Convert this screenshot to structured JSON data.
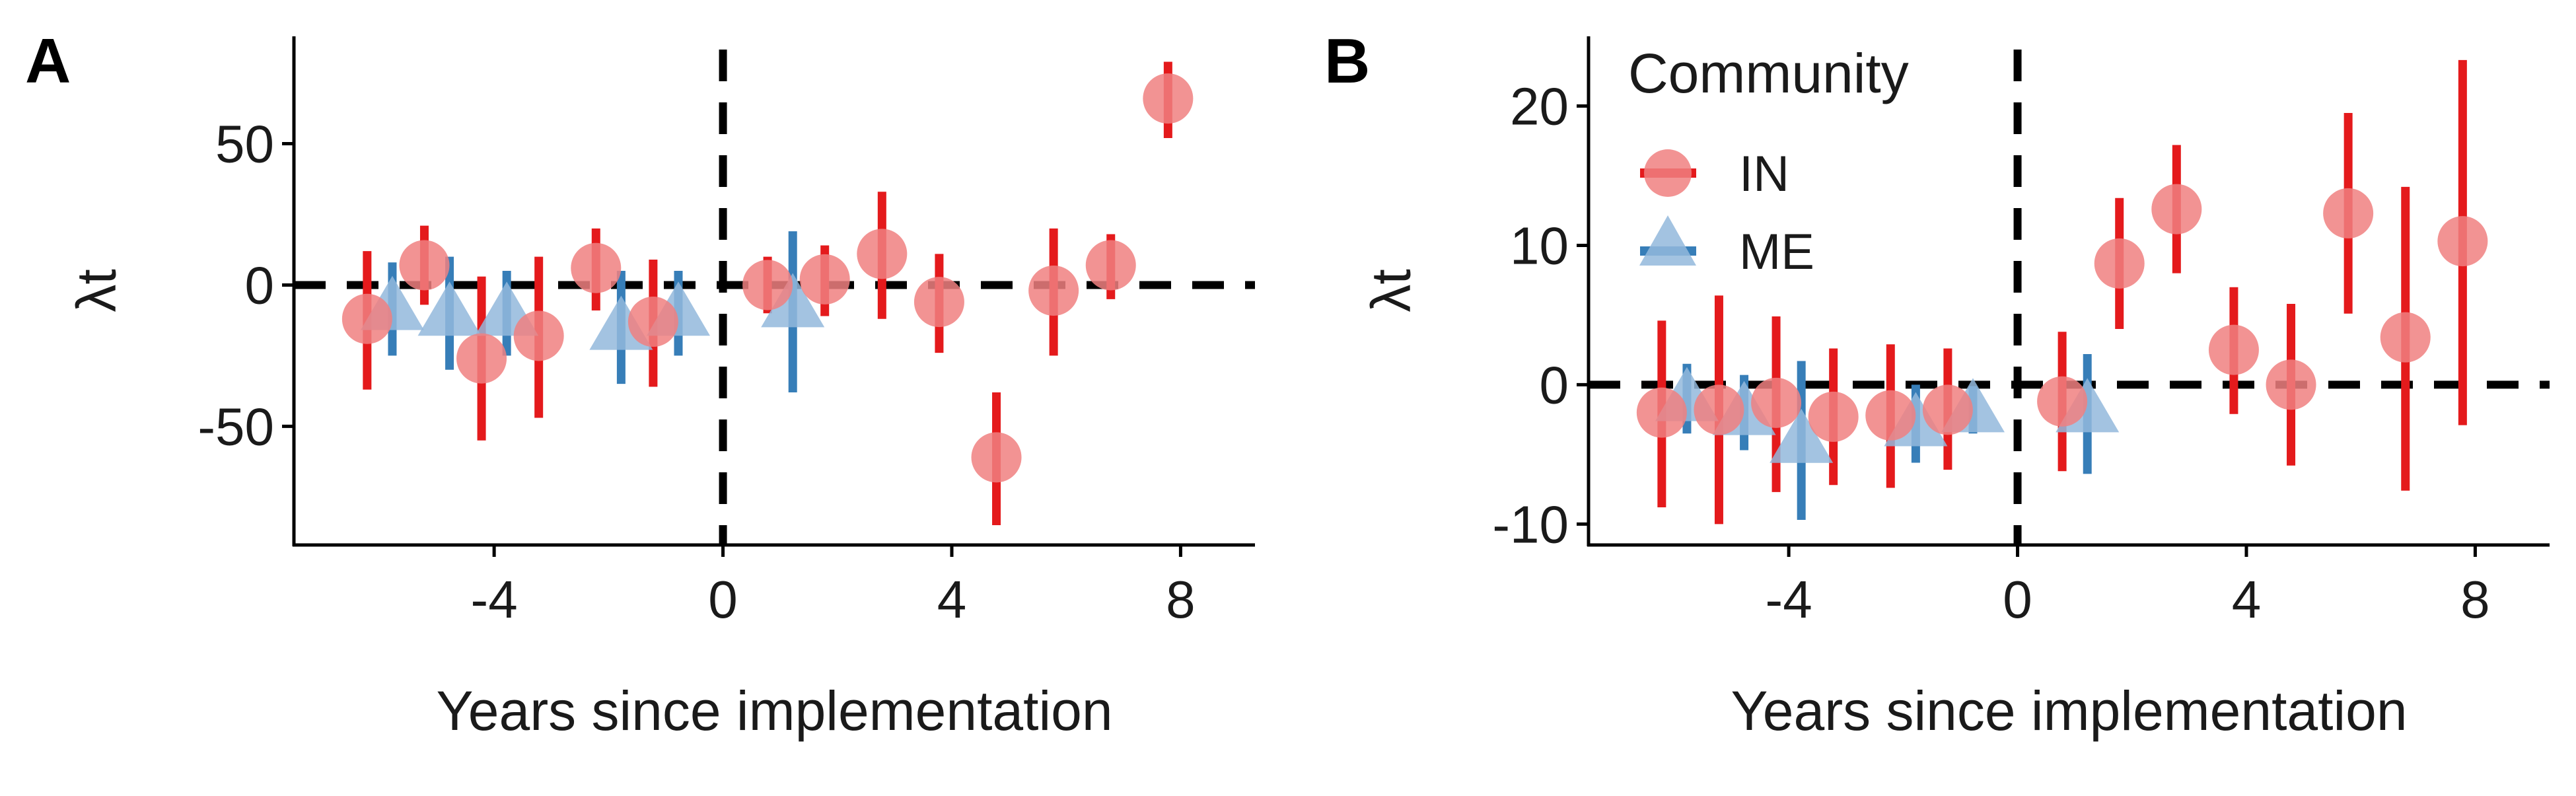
{
  "colors": {
    "IN": "#e41a1c",
    "ME": "#377eb8",
    "IN_point": "#f08080",
    "ME_point": "#93b8dc",
    "reference": "#000000"
  },
  "legend": {
    "title": "Community",
    "placement": "top-left of panel B",
    "entries": [
      {
        "key": "IN",
        "label": "IN",
        "shape": "circle"
      },
      {
        "key": "ME",
        "label": "ME",
        "shape": "triangle"
      }
    ]
  },
  "chart_data": [
    {
      "type": "scatter",
      "panel": "A",
      "xlabel": "Years since implementation",
      "ylabel": "λt",
      "xlim": [
        -7.5,
        9.3
      ],
      "ylim": [
        -92,
        88
      ],
      "xticks": [
        -4,
        0,
        4,
        8
      ],
      "xtick_labels": [
        "-4",
        "0",
        "4",
        "8"
      ],
      "yticks": [
        -50,
        0,
        50
      ],
      "ytick_labels": [
        "-50",
        "0",
        "50"
      ],
      "reference_lines": {
        "vertical_x": 0,
        "horizontal_y": 0
      },
      "series": [
        {
          "name": "IN",
          "points": [
            {
              "x": -6,
              "y": -12,
              "lo": -37,
              "hi": 12
            },
            {
              "x": -5,
              "y": 7,
              "lo": -7,
              "hi": 21
            },
            {
              "x": -4,
              "y": -26,
              "lo": -55,
              "hi": 3
            },
            {
              "x": -3,
              "y": -18,
              "lo": -47,
              "hi": 10
            },
            {
              "x": -2,
              "y": 6,
              "lo": -9,
              "hi": 20
            },
            {
              "x": -1,
              "y": -13,
              "lo": -36,
              "hi": 9
            },
            {
              "x": 1,
              "y": 0,
              "lo": -10,
              "hi": 10
            },
            {
              "x": 2,
              "y": 2,
              "lo": -11,
              "hi": 14
            },
            {
              "x": 3,
              "y": 11,
              "lo": -12,
              "hi": 33
            },
            {
              "x": 4,
              "y": -6,
              "lo": -24,
              "hi": 11
            },
            {
              "x": 5,
              "y": -61,
              "lo": -85,
              "hi": -38
            },
            {
              "x": 6,
              "y": -2,
              "lo": -25,
              "hi": 20
            },
            {
              "x": 7,
              "y": 7,
              "lo": -5,
              "hi": 18
            },
            {
              "x": 8,
              "y": 66,
              "lo": 52,
              "hi": 79
            }
          ]
        },
        {
          "name": "ME",
          "points": [
            {
              "x": -6,
              "y": -8,
              "lo": -25,
              "hi": 8
            },
            {
              "x": -5,
              "y": -10,
              "lo": -30,
              "hi": 10
            },
            {
              "x": -4,
              "y": -10,
              "lo": -25,
              "hi": 5
            },
            {
              "x": -2,
              "y": -15,
              "lo": -35,
              "hi": 5
            },
            {
              "x": -1,
              "y": -10,
              "lo": -25,
              "hi": 5
            },
            {
              "x": 1,
              "y": -7,
              "lo": -38,
              "hi": 19
            }
          ]
        }
      ]
    },
    {
      "type": "scatter",
      "panel": "B",
      "xlabel": "Years since implementation",
      "ylabel": "λt",
      "xlim": [
        -7.5,
        9.3
      ],
      "ylim": [
        -11.5,
        25
      ],
      "xticks": [
        -4,
        0,
        4,
        8
      ],
      "xtick_labels": [
        "-4",
        "0",
        "4",
        "8"
      ],
      "yticks": [
        -10,
        0,
        10,
        20
      ],
      "ytick_labels": [
        "-10",
        "0",
        "10",
        "20"
      ],
      "reference_lines": {
        "vertical_x": 0,
        "horizontal_y": 0
      },
      "series": [
        {
          "name": "IN",
          "points": [
            {
              "x": -6,
              "y": -2,
              "lo": -8.8,
              "hi": 4.6
            },
            {
              "x": -5,
              "y": -1.8,
              "lo": -10,
              "hi": 6.4
            },
            {
              "x": -4,
              "y": -1.3,
              "lo": -7.7,
              "hi": 4.9
            },
            {
              "x": -3,
              "y": -2.3,
              "lo": -7.2,
              "hi": 2.6
            },
            {
              "x": -2,
              "y": -2.2,
              "lo": -7.4,
              "hi": 2.9
            },
            {
              "x": -1,
              "y": -1.8,
              "lo": -6.1,
              "hi": 2.6
            },
            {
              "x": 1,
              "y": -1.2,
              "lo": -6.2,
              "hi": 3.8
            },
            {
              "x": 2,
              "y": 8.7,
              "lo": 4,
              "hi": 13.4
            },
            {
              "x": 3,
              "y": 12.6,
              "lo": 8,
              "hi": 17.2
            },
            {
              "x": 4,
              "y": 2.5,
              "lo": -2.1,
              "hi": 7
            },
            {
              "x": 5,
              "y": 0,
              "lo": -5.8,
              "hi": 5.8
            },
            {
              "x": 6,
              "y": 12.3,
              "lo": 5.1,
              "hi": 19.5
            },
            {
              "x": 7,
              "y": 3.4,
              "lo": -7.6,
              "hi": 14.2
            },
            {
              "x": 8,
              "y": 10.3,
              "lo": -2.9,
              "hi": 23.3
            }
          ]
        },
        {
          "name": "ME",
          "points": [
            {
              "x": -6,
              "y": -1,
              "lo": -3.5,
              "hi": 1.5
            },
            {
              "x": -5,
              "y": -2,
              "lo": -4.7,
              "hi": 0.7
            },
            {
              "x": -4,
              "y": -4,
              "lo": -9.7,
              "hi": 1.7
            },
            {
              "x": -2,
              "y": -2.8,
              "lo": -5.6,
              "hi": 0
            },
            {
              "x": -1,
              "y": -1.8,
              "lo": -3.5,
              "hi": -0.1
            },
            {
              "x": 1,
              "y": -1.8,
              "lo": -6.4,
              "hi": 2.2
            }
          ]
        }
      ]
    }
  ],
  "panel_labels": [
    "A",
    "B"
  ]
}
